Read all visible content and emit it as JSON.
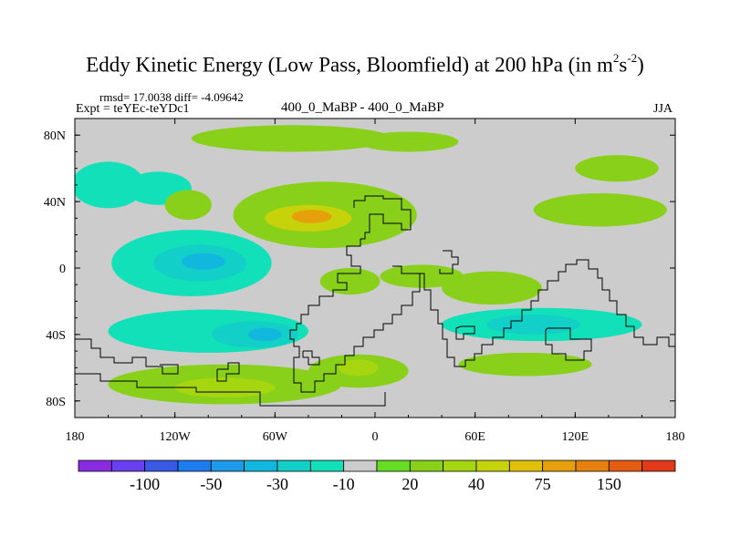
{
  "title": {
    "main": "Eddy Kinetic Energy (Low Pass, Bloomfield) at 200 hPa (in m",
    "sup1": "2",
    "mid": "s",
    "sup2": "-2",
    "end": ")"
  },
  "stats": "rmsd= 17.0038 diff= -4.09642",
  "experiment": "Expt = teYEc-teYDc1",
  "difference_label": "400_0_MaBP - 400_0_MaBP",
  "season": "JJA",
  "chart_data": {
    "type": "heatmap",
    "title": "Eddy Kinetic Energy (Low Pass, Bloomfield) at 200 hPa (in m2s-2)",
    "projection": "cylindrical equidistant",
    "x_range": [
      -180,
      180
    ],
    "y_range": [
      -90,
      90
    ],
    "x_ticks": [
      {
        "value": -180,
        "label": "180"
      },
      {
        "value": -120,
        "label": "120W"
      },
      {
        "value": -60,
        "label": "60W"
      },
      {
        "value": 0,
        "label": "0"
      },
      {
        "value": 60,
        "label": "60E"
      },
      {
        "value": 120,
        "label": "120E"
      },
      {
        "value": 180,
        "label": "180"
      }
    ],
    "y_ticks": [
      {
        "value": 80,
        "label": "80N"
      },
      {
        "value": 40,
        "label": "40N"
      },
      {
        "value": 0,
        "label": "0"
      },
      {
        "value": -40,
        "label": "40S"
      },
      {
        "value": -80,
        "label": "80S"
      }
    ],
    "background_color": "#cccccc",
    "colorbar": {
      "colors": [
        "#8a2be2",
        "#6a3ff0",
        "#3a58e6",
        "#1e7bf0",
        "#1e9be8",
        "#12b7dd",
        "#12cfc7",
        "#12e0b8",
        "#cccccc",
        "#66dd22",
        "#88d01a",
        "#a6d610",
        "#c6d20a",
        "#e0c00a",
        "#e6a00c",
        "#e6800e",
        "#e45c12",
        "#e03a1a"
      ],
      "labels": [
        {
          "boundary": 2,
          "text": "-100"
        },
        {
          "boundary": 4,
          "text": "-50"
        },
        {
          "boundary": 6,
          "text": "-30"
        },
        {
          "boundary": 8,
          "text": "-10"
        },
        {
          "boundary": 10,
          "text": "20"
        },
        {
          "boundary": 12,
          "text": "40"
        },
        {
          "boundary": 14,
          "text": "75"
        },
        {
          "boundary": 16,
          "text": "150"
        }
      ]
    },
    "regions": [
      {
        "name": "arctic-positive",
        "level": 1,
        "lon": -50,
        "lat": 78,
        "rlon": 60,
        "rlat": 8
      },
      {
        "name": "arctic-east-positive",
        "level": 1,
        "lon": 20,
        "lat": 76,
        "rlon": 30,
        "rlat": 6
      },
      {
        "name": "north-pacific-negative",
        "level": -1,
        "lon": -160,
        "lat": 50,
        "rlon": 22,
        "rlat": 14
      },
      {
        "name": "north-pacific-negative-2",
        "level": -1,
        "lon": -130,
        "lat": 48,
        "rlon": 20,
        "rlat": 10
      },
      {
        "name": "north-east-pacific-positive",
        "level": 1,
        "lon": -112,
        "lat": 38,
        "rlon": 14,
        "rlat": 9
      },
      {
        "name": "atlantic-jet-positive",
        "level": 1,
        "lon": -30,
        "lat": 32,
        "rlon": 55,
        "rlat": 20
      },
      {
        "name": "atlantic-jet-core",
        "level": 3,
        "lon": -40,
        "lat": 30,
        "rlon": 26,
        "rlat": 8
      },
      {
        "name": "atlantic-jet-peak",
        "level": 5,
        "lon": -38,
        "lat": 31,
        "rlon": 12,
        "rlat": 4
      },
      {
        "name": "central-pacific-negative",
        "level": -1,
        "lon": -110,
        "lat": 3,
        "rlon": 48,
        "rlat": 20
      },
      {
        "name": "central-pacific-negative-2",
        "level": -2,
        "lon": -105,
        "lat": 3,
        "rlon": 28,
        "rlat": 11
      },
      {
        "name": "central-pacific-negative-3",
        "level": -3,
        "lon": -103,
        "lat": 4,
        "rlon": 13,
        "rlat": 5
      },
      {
        "name": "east-asia-positive",
        "level": 1,
        "lon": 135,
        "lat": 35,
        "rlon": 40,
        "rlat": 10
      },
      {
        "name": "north-asia-positive",
        "level": 1,
        "lon": 145,
        "lat": 60,
        "rlon": 25,
        "rlat": 8
      },
      {
        "name": "tropical-atlantic-positive",
        "level": 1,
        "lon": -15,
        "lat": -8,
        "rlon": 18,
        "rlat": 8
      },
      {
        "name": "africa-positive",
        "level": 1,
        "lon": 28,
        "lat": -5,
        "rlon": 25,
        "rlat": 7
      },
      {
        "name": "indian-ocean-positive",
        "level": 1,
        "lon": 70,
        "lat": -12,
        "rlon": 30,
        "rlat": 10
      },
      {
        "name": "south-pacific-negative",
        "level": -1,
        "lon": -100,
        "lat": -38,
        "rlon": 60,
        "rlat": 13
      },
      {
        "name": "south-pacific-negative-2",
        "level": -2,
        "lon": -72,
        "lat": -40,
        "rlon": 26,
        "rlat": 8
      },
      {
        "name": "south-pacific-negative-3",
        "level": -3,
        "lon": -66,
        "lat": -40,
        "rlon": 10,
        "rlat": 4
      },
      {
        "name": "south-indian-negative",
        "level": -1,
        "lon": 100,
        "lat": -34,
        "rlon": 60,
        "rlat": 10
      },
      {
        "name": "south-indian-negative-2",
        "level": -2,
        "lon": 95,
        "lat": -34,
        "rlon": 28,
        "rlat": 6
      },
      {
        "name": "southern-ocean-positive",
        "level": 1,
        "lon": -90,
        "lat": -70,
        "rlon": 70,
        "rlat": 12
      },
      {
        "name": "southern-ocean-positive-2",
        "level": 2,
        "lon": -90,
        "lat": -72,
        "rlon": 30,
        "rlat": 6
      },
      {
        "name": "south-atlantic-positive",
        "level": 1,
        "lon": -10,
        "lat": -62,
        "rlon": 30,
        "rlat": 10
      },
      {
        "name": "south-atlantic-core",
        "level": 2,
        "lon": -10,
        "lat": -60,
        "rlon": 12,
        "rlat": 5
      },
      {
        "name": "south-indian-positive",
        "level": 1,
        "lon": 90,
        "lat": -58,
        "rlon": 40,
        "rlat": 7
      }
    ]
  }
}
